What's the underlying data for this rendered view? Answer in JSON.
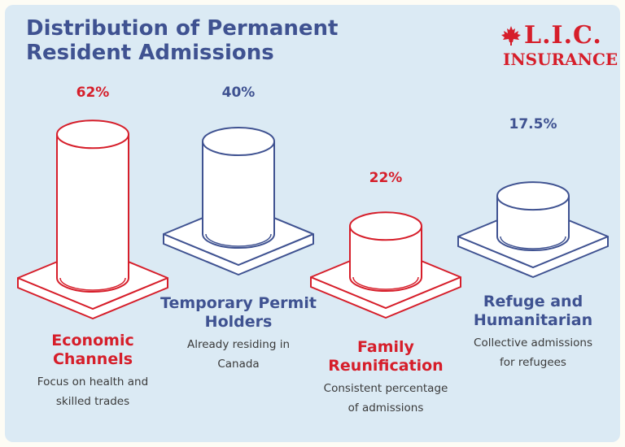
{
  "title_line1": "Distribution of Permanent",
  "title_line2": "Resident Admissions",
  "logo": {
    "line1": "L.I.C.",
    "line2": "INSURANCE",
    "icon": "maple-leaf-icon"
  },
  "colors": {
    "red": "#d61e2a",
    "blue": "#3f5291",
    "background": "#dbeaf4"
  },
  "chart_data": {
    "type": "bar",
    "title": "Distribution of Permanent Resident Admissions",
    "categories": [
      "Economic Channels",
      "Temporary Permit Holders",
      "Family Reunification",
      "Refuge and Humanitarian"
    ],
    "values": [
      62,
      40,
      22,
      17.5
    ],
    "value_labels": [
      "62%",
      "40%",
      "22%",
      "17.5%"
    ],
    "category_lines": [
      [
        "Economic",
        "Channels"
      ],
      [
        "Temporary Permit",
        "Holders"
      ],
      [
        "Family",
        "Reunification"
      ],
      [
        "Refuge and",
        "Humanitarian"
      ]
    ],
    "descriptions": [
      [
        "Focus on health and",
        "skilled trades"
      ],
      [
        "Already residing in",
        "Canada"
      ],
      [
        "Consistent percentage",
        "of admissions"
      ],
      [
        "Collective admissions",
        "for refugees"
      ]
    ],
    "bar_colors": [
      "#d61e2a",
      "#3f5291",
      "#d61e2a",
      "#3f5291"
    ],
    "style": "3d-cylinder"
  }
}
